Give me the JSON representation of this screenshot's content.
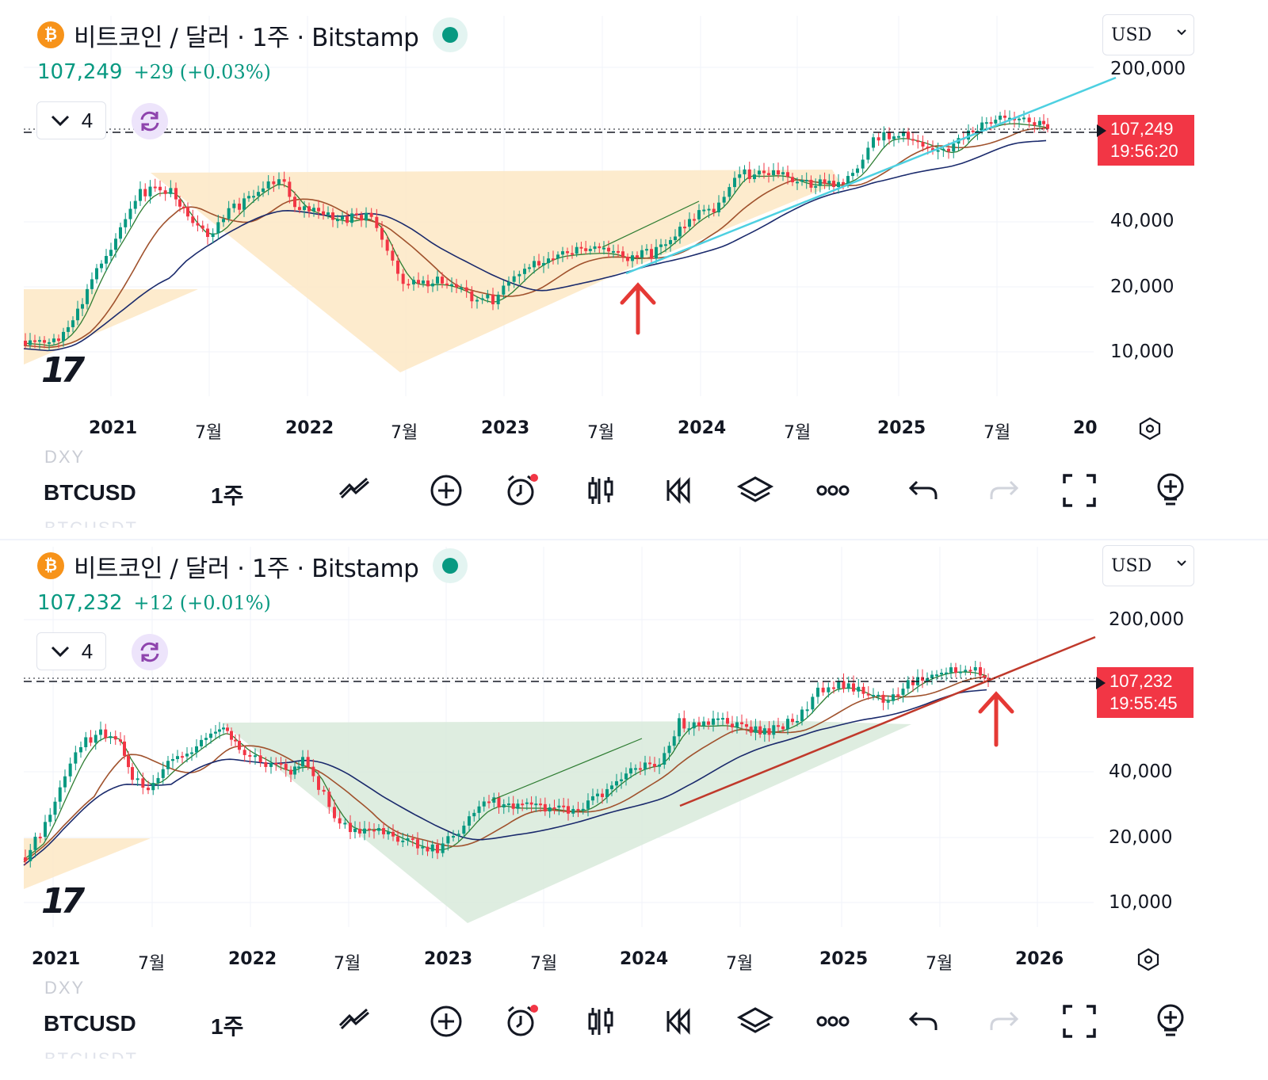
{
  "panels": [
    {
      "title": "비트코인 / 달러 · 1주 · Bitstamp",
      "price": "107,249",
      "change": "+29 (+0.03%)",
      "indicator_count": "4",
      "currency": "USD",
      "price_tag": {
        "price": "107,249",
        "countdown": "19:56:20"
      },
      "y_axis_labels": [
        "200,000",
        "40,000",
        "20,000",
        "10,000"
      ],
      "x_axis_labels": [
        "2021",
        "7월",
        "2022",
        "7월",
        "2023",
        "7월",
        "2024",
        "7월",
        "2025",
        "7월",
        "20"
      ],
      "pattern_fill_color": "#fde8c4",
      "trendline_color": "#4dd0e1"
    },
    {
      "title": "비트코인 / 달러 · 1주 · Bitstamp",
      "price": "107,232",
      "change": "+12 (+0.01%)",
      "indicator_count": "4",
      "currency": "USD",
      "price_tag": {
        "price": "107,232",
        "countdown": "19:55:45"
      },
      "y_axis_labels": [
        "200,000",
        "40,000",
        "20,000",
        "10,000"
      ],
      "x_axis_labels": [
        "2021",
        "7월",
        "2022",
        "7월",
        "2023",
        "7월",
        "2024",
        "7월",
        "2025",
        "7월",
        "2026"
      ],
      "pattern_fill_color": "#d8eadb",
      "trendline_color": "#c0392b"
    }
  ],
  "toolbars": [
    {
      "ghost_above": "DXY",
      "symbol": "BTCUSD",
      "interval": "1주",
      "ghost_below": "BTCUSDT"
    },
    {
      "ghost_above": "DXY",
      "symbol": "BTCUSD",
      "interval": "1주",
      "ghost_below": "BTCUSDT"
    }
  ],
  "toolbar_icons": [
    "drawing-tools-icon",
    "add-icon",
    "alert-icon",
    "bar-style-icon",
    "replay-icon",
    "layers-icon",
    "more-icon",
    "undo-icon",
    "redo-icon",
    "fullscreen-icon",
    "add-indicator-icon"
  ],
  "colors": {
    "up": "#089981",
    "down": "#f23645",
    "ema_green": "#2e7d32",
    "ema_brown": "#a0522d",
    "ema_navy": "#1a2a6c"
  },
  "logo": "TradingView"
}
